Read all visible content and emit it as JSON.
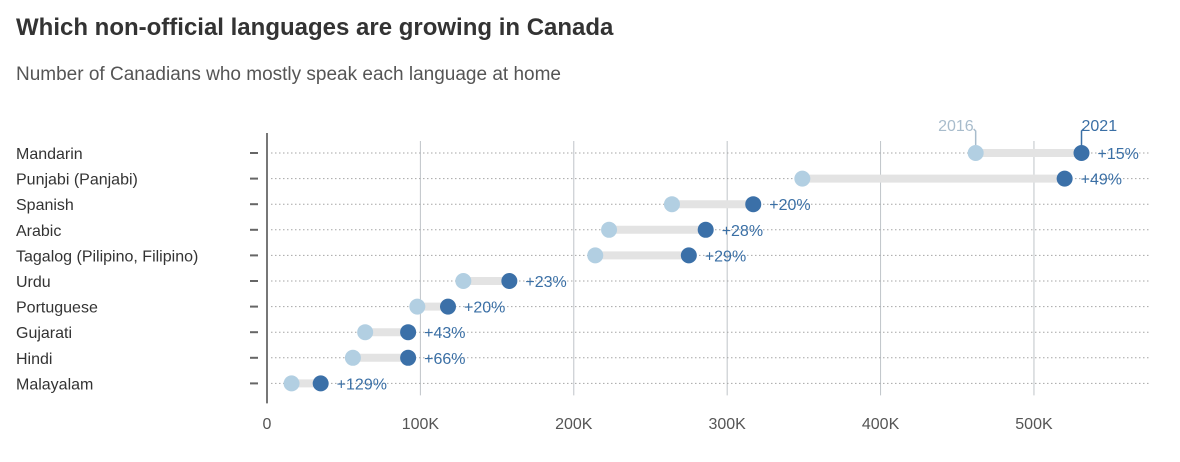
{
  "header": {
    "title": "Which non-official languages are growing in Canada",
    "subtitle": "Number of Canadians who mostly speak each language at home"
  },
  "colors": {
    "y2016": "#b2cfe2",
    "y2021": "#3b70a8",
    "connector": "#e3e3e3"
  },
  "chart_data": {
    "type": "dumbbell",
    "title": "Which non-official languages are growing in Canada",
    "subtitle": "Number of Canadians who mostly speak each language at home",
    "xlim": [
      0,
      575000
    ],
    "x_ticks": [
      0,
      100000,
      200000,
      300000,
      400000,
      500000
    ],
    "x_tick_labels": [
      "0",
      "100K",
      "200K",
      "300K",
      "400K",
      "500K"
    ],
    "legend": [
      "2016",
      "2021"
    ],
    "categories": [
      "Mandarin",
      "Punjabi (Panjabi)",
      "Spanish",
      "Arabic",
      "Tagalog (Pilipino, Filipino)",
      "Urdu",
      "Portuguese",
      "Gujarati",
      "Hindi",
      "Malayalam"
    ],
    "series": [
      {
        "name": "2016",
        "values": [
          462000,
          349000,
          264000,
          223000,
          214000,
          128000,
          98000,
          64000,
          56000,
          16000
        ]
      },
      {
        "name": "2021",
        "values": [
          531000,
          520000,
          317000,
          286000,
          275000,
          158000,
          118000,
          92000,
          92000,
          35000
        ]
      }
    ],
    "change_labels": [
      "+15%",
      "+49%",
      "+20%",
      "+28%",
      "+29%",
      "+23%",
      "+20%",
      "+43%",
      "+66%",
      "+129%"
    ]
  }
}
